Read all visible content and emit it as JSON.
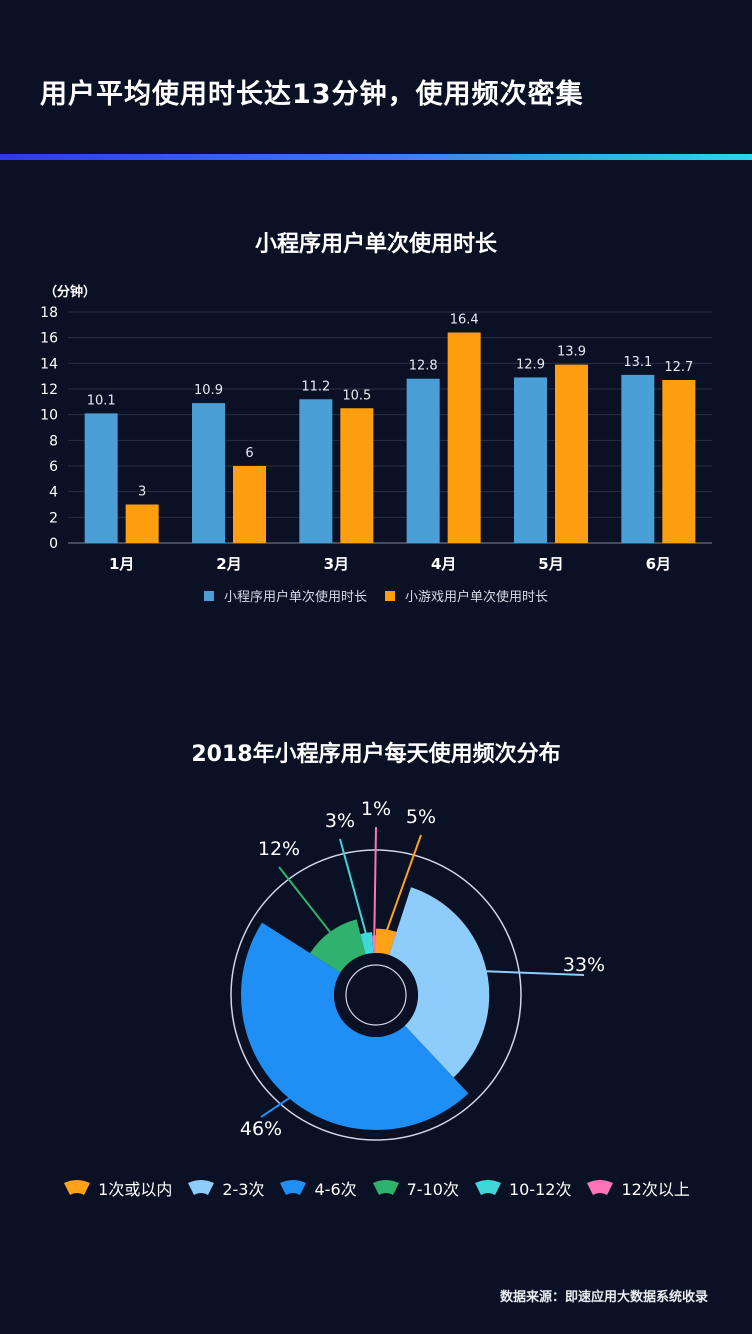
{
  "page": {
    "title": "用户平均使用时长达13分钟，使用频次密集",
    "source": "数据来源：即速应用大数据系统收录"
  },
  "colors": {
    "background": "#0b1124",
    "series_blue": "#4a9fd6",
    "series_orange": "#ff9f0f"
  },
  "chart_data": [
    {
      "type": "bar",
      "title": "小程序用户单次使用时长",
      "ylabel": "（分钟）",
      "categories": [
        "1月",
        "2月",
        "3月",
        "4月",
        "5月",
        "6月"
      ],
      "series": [
        {
          "name": "小程序用户单次使用时长",
          "values": [
            10.1,
            10.9,
            11.2,
            12.8,
            12.9,
            13.1
          ],
          "color": "#4a9fd6"
        },
        {
          "name": "小游戏用户单次使用时长",
          "values": [
            3,
            6,
            10.5,
            16.4,
            13.9,
            12.7
          ],
          "color": "#ff9f0f"
        }
      ],
      "ylim": [
        0,
        18
      ],
      "yticks": [
        0,
        2,
        4,
        6,
        8,
        10,
        12,
        14,
        16,
        18
      ],
      "grid": true,
      "legend": "bottom"
    },
    {
      "type": "pie",
      "title": "2018年小程序用户每天使用频次分布",
      "categories": [
        "1次或以内",
        "2-3次",
        "4-6次",
        "7-10次",
        "10-12次",
        "12次以上"
      ],
      "values": [
        5,
        33,
        46,
        12,
        3,
        1
      ],
      "labels": [
        "5%",
        "33%",
        "46%",
        "12%",
        "3%",
        "1%"
      ],
      "colors": [
        "#ffa21a",
        "#8ecdfb",
        "#1f8ff5",
        "#2fb26d",
        "#3fd7d9",
        "#ff74b6"
      ],
      "legend": "bottom"
    }
  ]
}
